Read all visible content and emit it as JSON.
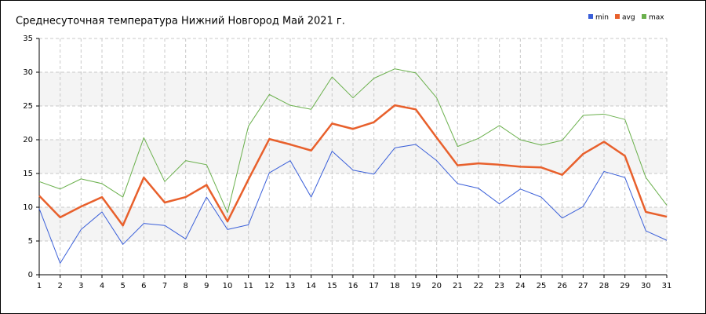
{
  "chart_data": {
    "type": "line",
    "title": "Среднесуточная температура Нижний Новгород  Май 2021 г.",
    "x": [
      1,
      2,
      3,
      4,
      5,
      6,
      7,
      8,
      9,
      10,
      11,
      12,
      13,
      14,
      15,
      16,
      17,
      18,
      19,
      20,
      21,
      22,
      23,
      24,
      25,
      26,
      27,
      28,
      29,
      30,
      31
    ],
    "series": [
      {
        "name": "min",
        "color": "#3a5fd9",
        "width": 1,
        "values": [
          9.8,
          1.7,
          6.7,
          9.3,
          4.5,
          7.6,
          7.3,
          5.3,
          11.5,
          6.7,
          7.4,
          15.1,
          16.9,
          11.5,
          18.3,
          15.5,
          14.9,
          18.8,
          19.3,
          16.9,
          13.5,
          12.8,
          10.5,
          12.7,
          11.5,
          8.4,
          10.1,
          15.3,
          14.4,
          6.5,
          5.1
        ]
      },
      {
        "name": "avg",
        "color": "#e8602c",
        "width": 2.5,
        "values": [
          11.7,
          8.5,
          10.1,
          11.5,
          7.3,
          14.4,
          10.7,
          11.5,
          13.3,
          7.9,
          14.1,
          20.1,
          19.3,
          18.4,
          22.4,
          21.6,
          22.6,
          25.1,
          24.5,
          20.3,
          16.2,
          16.5,
          16.3,
          16.0,
          15.9,
          14.8,
          17.9,
          19.7,
          17.6,
          9.3,
          8.6
        ]
      },
      {
        "name": "max",
        "color": "#6ab04c",
        "width": 1,
        "values": [
          13.8,
          12.7,
          14.2,
          13.5,
          11.5,
          20.3,
          13.8,
          16.9,
          16.3,
          9.2,
          22.0,
          26.7,
          25.1,
          24.5,
          29.3,
          26.2,
          29.1,
          30.5,
          29.9,
          26.2,
          19.0,
          20.2,
          22.1,
          20.0,
          19.2,
          19.9,
          23.6,
          23.8,
          23.0,
          14.4,
          10.3
        ]
      }
    ],
    "xlim": [
      1,
      31
    ],
    "xticks": [
      1,
      2,
      3,
      4,
      5,
      6,
      7,
      8,
      9,
      10,
      11,
      12,
      13,
      14,
      15,
      16,
      17,
      18,
      19,
      20,
      21,
      22,
      23,
      24,
      25,
      26,
      27,
      28,
      29,
      30,
      31
    ],
    "ylim": [
      0,
      35
    ],
    "yticks": [
      0,
      5,
      10,
      15,
      20,
      25,
      30,
      35
    ],
    "grid": true,
    "alternate_bands": true,
    "legend": "top-right"
  }
}
